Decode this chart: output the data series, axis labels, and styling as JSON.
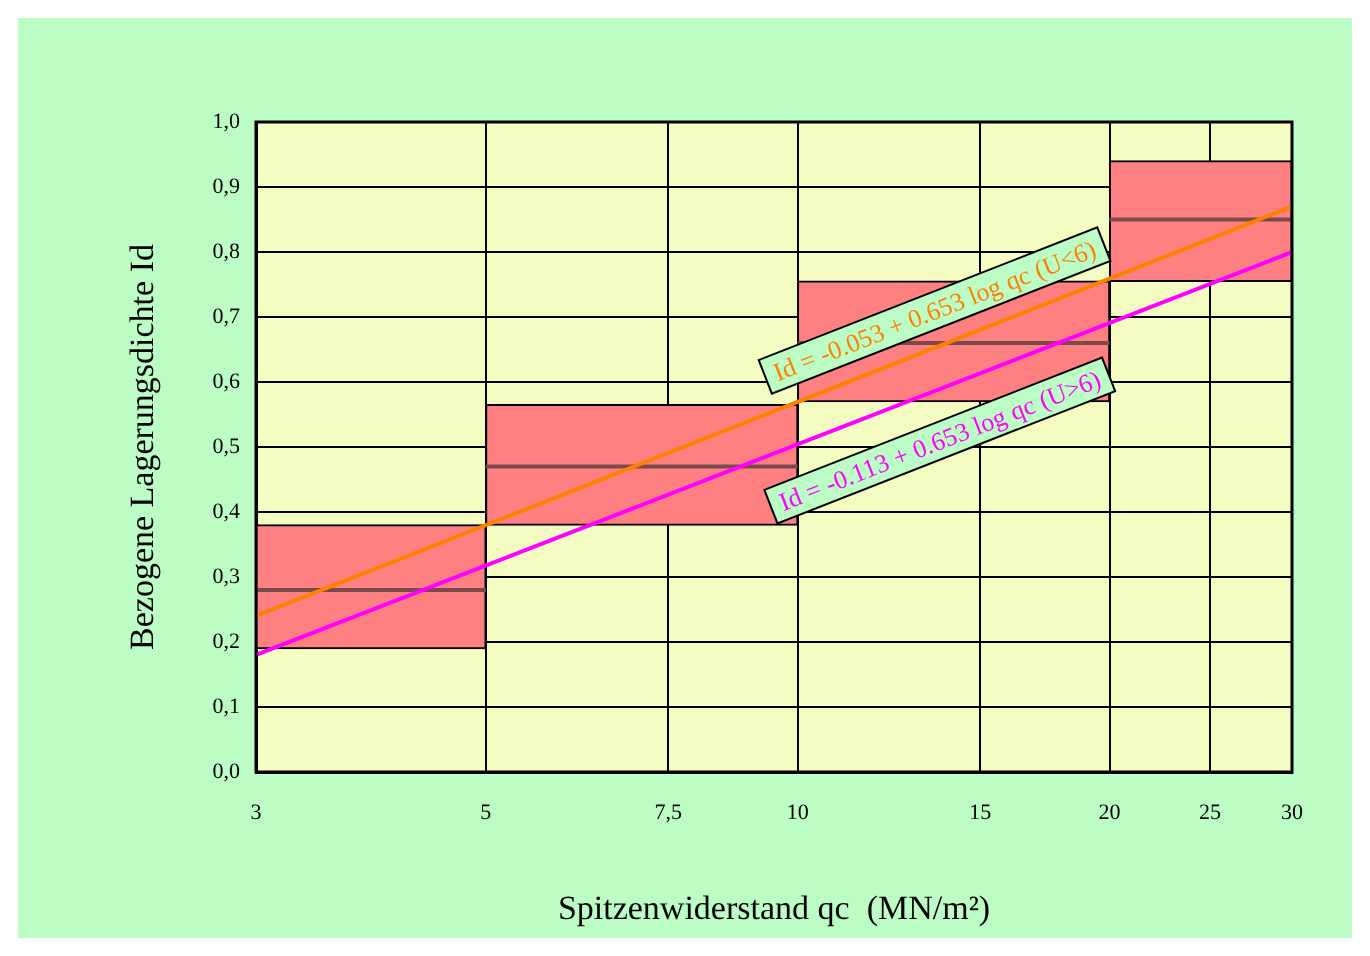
{
  "chart_data": {
    "type": "histogram",
    "xlabel": "Spitzenwiderstand qc  (MN/m²)",
    "ylabel": "Bezogene Lagerungsdichte Id",
    "bins": [
      3,
      5,
      10,
      20,
      30
    ],
    "values": [
      0.19,
      0.185,
      0.185,
      0.185
    ],
    "base": [
      0.19,
      0.38,
      0.57,
      0.755
    ],
    "color": "#ff8080",
    "series": [
      {
        "type": "line",
        "color": "#ff8000",
        "x": [
          3,
          30
        ],
        "values": [
          0.24,
          0.87
        ]
      },
      {
        "type": "line",
        "color": "#ff00ff",
        "x": [
          3,
          30
        ],
        "values": [
          0.18,
          0.8
        ]
      },
      {
        "type": "line",
        "color": "#7a4a4a",
        "x": [
          3,
          5
        ],
        "values": [
          0.28,
          0.28
        ]
      },
      {
        "type": "line",
        "color": "#7a4a4a",
        "x": [
          5,
          10
        ],
        "values": [
          0.47,
          0.47
        ]
      },
      {
        "type": "line",
        "color": "#7a4a4a",
        "x": [
          10,
          20
        ],
        "values": [
          0.66,
          0.66
        ]
      },
      {
        "type": "line",
        "color": "#7a4a4a",
        "x": [
          20,
          30
        ],
        "values": [
          0.85,
          0.85
        ]
      }
    ],
    "annotations": [
      "Id = -0.053 + 0.653 log qc (U<6)",
      "Id = -0.113 + 0.653 log qc (U>6)"
    ],
    "log": "x",
    "xlim": [
      3,
      30
    ],
    "xticks": [
      3,
      5,
      {
        "value": 7.5,
        "label": "7,5"
      },
      10,
      15,
      20,
      25,
      30
    ],
    "ylim": [
      0,
      1
    ],
    "yticks": [
      {
        "value": 0,
        "label": "0,0"
      },
      {
        "value": 0.1,
        "label": "0,1"
      },
      {
        "value": 0.2,
        "label": "0,2"
      },
      {
        "value": 0.3,
        "label": "0,3"
      },
      {
        "value": 0.4,
        "label": "0,4"
      },
      {
        "value": 0.5,
        "label": "0,5"
      },
      {
        "value": 0.6,
        "label": "0,6"
      },
      {
        "value": 0.7,
        "label": "0,7"
      },
      {
        "value": 0.8,
        "label": "0,8"
      },
      {
        "value": 0.9,
        "label": "0,9"
      },
      {
        "value": 1,
        "label": "1,0"
      }
    ],
    "grid": true,
    "legend": false,
    "marker": "none"
  }
}
